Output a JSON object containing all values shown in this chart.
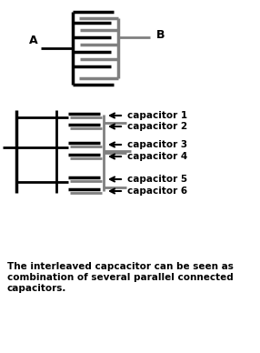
{
  "figsize": [
    2.86,
    3.88
  ],
  "dpi": 100,
  "bg_color": "#ffffff",
  "black": "#000000",
  "gray": "#808080",
  "capacitor_labels": [
    "capacitor 1",
    "capacitor 2",
    "capacitor 3",
    "capacitor 4",
    "capacitor 5",
    "capacitor 6"
  ],
  "caption_lines": [
    "The interleaved capcacitor can be seen as",
    "combination of several parallel connected",
    "capacitors."
  ],
  "font_size_label": 7.5,
  "font_size_caption": 7.5,
  "font_size_AB": 9
}
